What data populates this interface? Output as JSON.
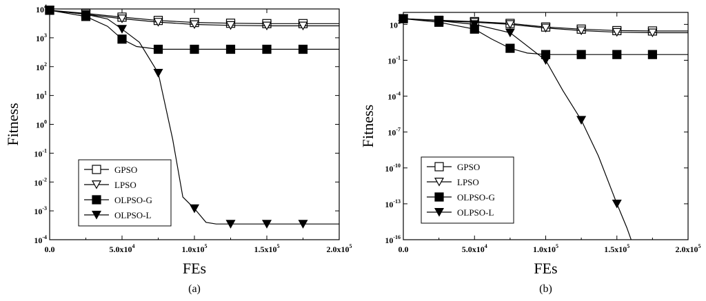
{
  "chart_data": [
    {
      "type": "line",
      "panel_label": "(a)",
      "xlabel": "FEs",
      "ylabel": "Fitness",
      "xlim": [
        0,
        200000
      ],
      "ylim_log10": [
        -4,
        4
      ],
      "y_scale": "log",
      "x_ticks": [
        {
          "value": 0,
          "label": "0.0"
        },
        {
          "value": 50000,
          "label": "5.0x10",
          "exp": "4"
        },
        {
          "value": 100000,
          "label": "1.0x10",
          "exp": "5"
        },
        {
          "value": 150000,
          "label": "1.5x10",
          "exp": "5"
        },
        {
          "value": 200000,
          "label": "2.0x10",
          "exp": "5"
        }
      ],
      "y_ticks": [
        {
          "value": -4,
          "label": "10",
          "exp": "-4"
        },
        {
          "value": -3,
          "label": "10",
          "exp": "-3"
        },
        {
          "value": -2,
          "label": "10",
          "exp": "-2"
        },
        {
          "value": -1,
          "label": "10",
          "exp": "-1"
        },
        {
          "value": 0,
          "label": "10",
          "exp": "0"
        },
        {
          "value": 1,
          "label": "10",
          "exp": "1"
        },
        {
          "value": 2,
          "label": "10",
          "exp": "2"
        },
        {
          "value": 3,
          "label": "10",
          "exp": "3"
        },
        {
          "value": 4,
          "label": "10",
          "exp": "4"
        }
      ],
      "legend": "bottom-left",
      "series": [
        {
          "name": "GPSO",
          "marker": "square-open",
          "x": [
            0,
            25000,
            50000,
            75000,
            100000,
            125000,
            150000,
            175000,
            200000
          ],
          "y": [
            9000,
            7000,
            5200,
            4000,
            3400,
            3200,
            3100,
            3100,
            3100
          ]
        },
        {
          "name": "LPSO",
          "marker": "triangle-down-open",
          "x": [
            0,
            25000,
            50000,
            75000,
            100000,
            125000,
            150000,
            175000,
            200000
          ],
          "y": [
            9000,
            6500,
            4600,
            3500,
            2900,
            2700,
            2600,
            2600,
            2600
          ]
        },
        {
          "name": "OLPSO-G",
          "marker": "square-filled",
          "x": [
            0,
            25000,
            40000,
            50000,
            60000,
            75000,
            100000,
            125000,
            150000,
            175000,
            200000
          ],
          "y": [
            9000,
            5500,
            2500,
            900,
            500,
            400,
            400,
            400,
            400,
            400,
            400
          ]
        },
        {
          "name": "OLPSO-L",
          "marker": "triangle-down-filled",
          "x": [
            0,
            25000,
            40000,
            50000,
            62000,
            75000,
            85000,
            92000,
            100000,
            108000,
            115000,
            125000,
            150000,
            175000,
            200000
          ],
          "y": [
            9000,
            6500,
            4500,
            2000,
            700,
            60,
            0.3,
            0.003,
            0.0012,
            0.0004,
            0.00035,
            0.00035,
            0.00035,
            0.00035,
            0.00035
          ]
        }
      ]
    },
    {
      "type": "line",
      "panel_label": "(b)",
      "xlabel": "FEs",
      "ylabel": "Fitness",
      "xlim": [
        0,
        200000
      ],
      "ylim_log10": [
        -16,
        3
      ],
      "y_scale": "log",
      "x_ticks": [
        {
          "value": 0,
          "label": "0.0"
        },
        {
          "value": 50000,
          "label": "5.0x10",
          "exp": "4"
        },
        {
          "value": 100000,
          "label": "1.0x10",
          "exp": "5"
        },
        {
          "value": 150000,
          "label": "1.5x10",
          "exp": "5"
        },
        {
          "value": 200000,
          "label": "2.0x10",
          "exp": "5"
        }
      ],
      "y_ticks": [
        {
          "value": -16,
          "label": "10",
          "exp": "-16"
        },
        {
          "value": -13,
          "label": "10",
          "exp": "-13"
        },
        {
          "value": -10,
          "label": "10",
          "exp": "-10"
        },
        {
          "value": -7,
          "label": "10",
          "exp": "-7"
        },
        {
          "value": -4,
          "label": "10",
          "exp": "-4"
        },
        {
          "value": -1,
          "label": "10",
          "exp": "-1"
        },
        {
          "value": 2,
          "label": "10",
          "exp": "2"
        }
      ],
      "legend": "bottom-left",
      "series": [
        {
          "name": "GPSO",
          "marker": "square-open",
          "x": [
            0,
            25000,
            50000,
            75000,
            100000,
            125000,
            150000,
            175000,
            200000
          ],
          "y": [
            300,
            220,
            170,
            120,
            60,
            40,
            30,
            28,
            28
          ]
        },
        {
          "name": "LPSO",
          "marker": "triangle-down-open",
          "x": [
            0,
            25000,
            50000,
            75000,
            100000,
            125000,
            150000,
            175000,
            200000
          ],
          "y": [
            300,
            200,
            150,
            100,
            50,
            30,
            22,
            20,
            20
          ]
        },
        {
          "name": "OLPSO-G",
          "marker": "square-filled",
          "x": [
            0,
            25000,
            50000,
            62000,
            75000,
            87000,
            100000,
            125000,
            150000,
            175000,
            200000
          ],
          "y": [
            300,
            150,
            40,
            6,
            1,
            0.4,
            0.3,
            0.3,
            0.3,
            0.3,
            0.3
          ]
        },
        {
          "name": "OLPSO-L",
          "marker": "triangle-down-filled",
          "x": [
            0,
            25000,
            50000,
            75000,
            100000,
            112000,
            125000,
            137000,
            150000,
            157000,
            160000
          ],
          "y": [
            300,
            200,
            100,
            20,
            0.1,
            0.0003,
            1e-06,
            1e-09,
            1e-13,
            1e-15,
            1e-16
          ]
        }
      ]
    }
  ]
}
